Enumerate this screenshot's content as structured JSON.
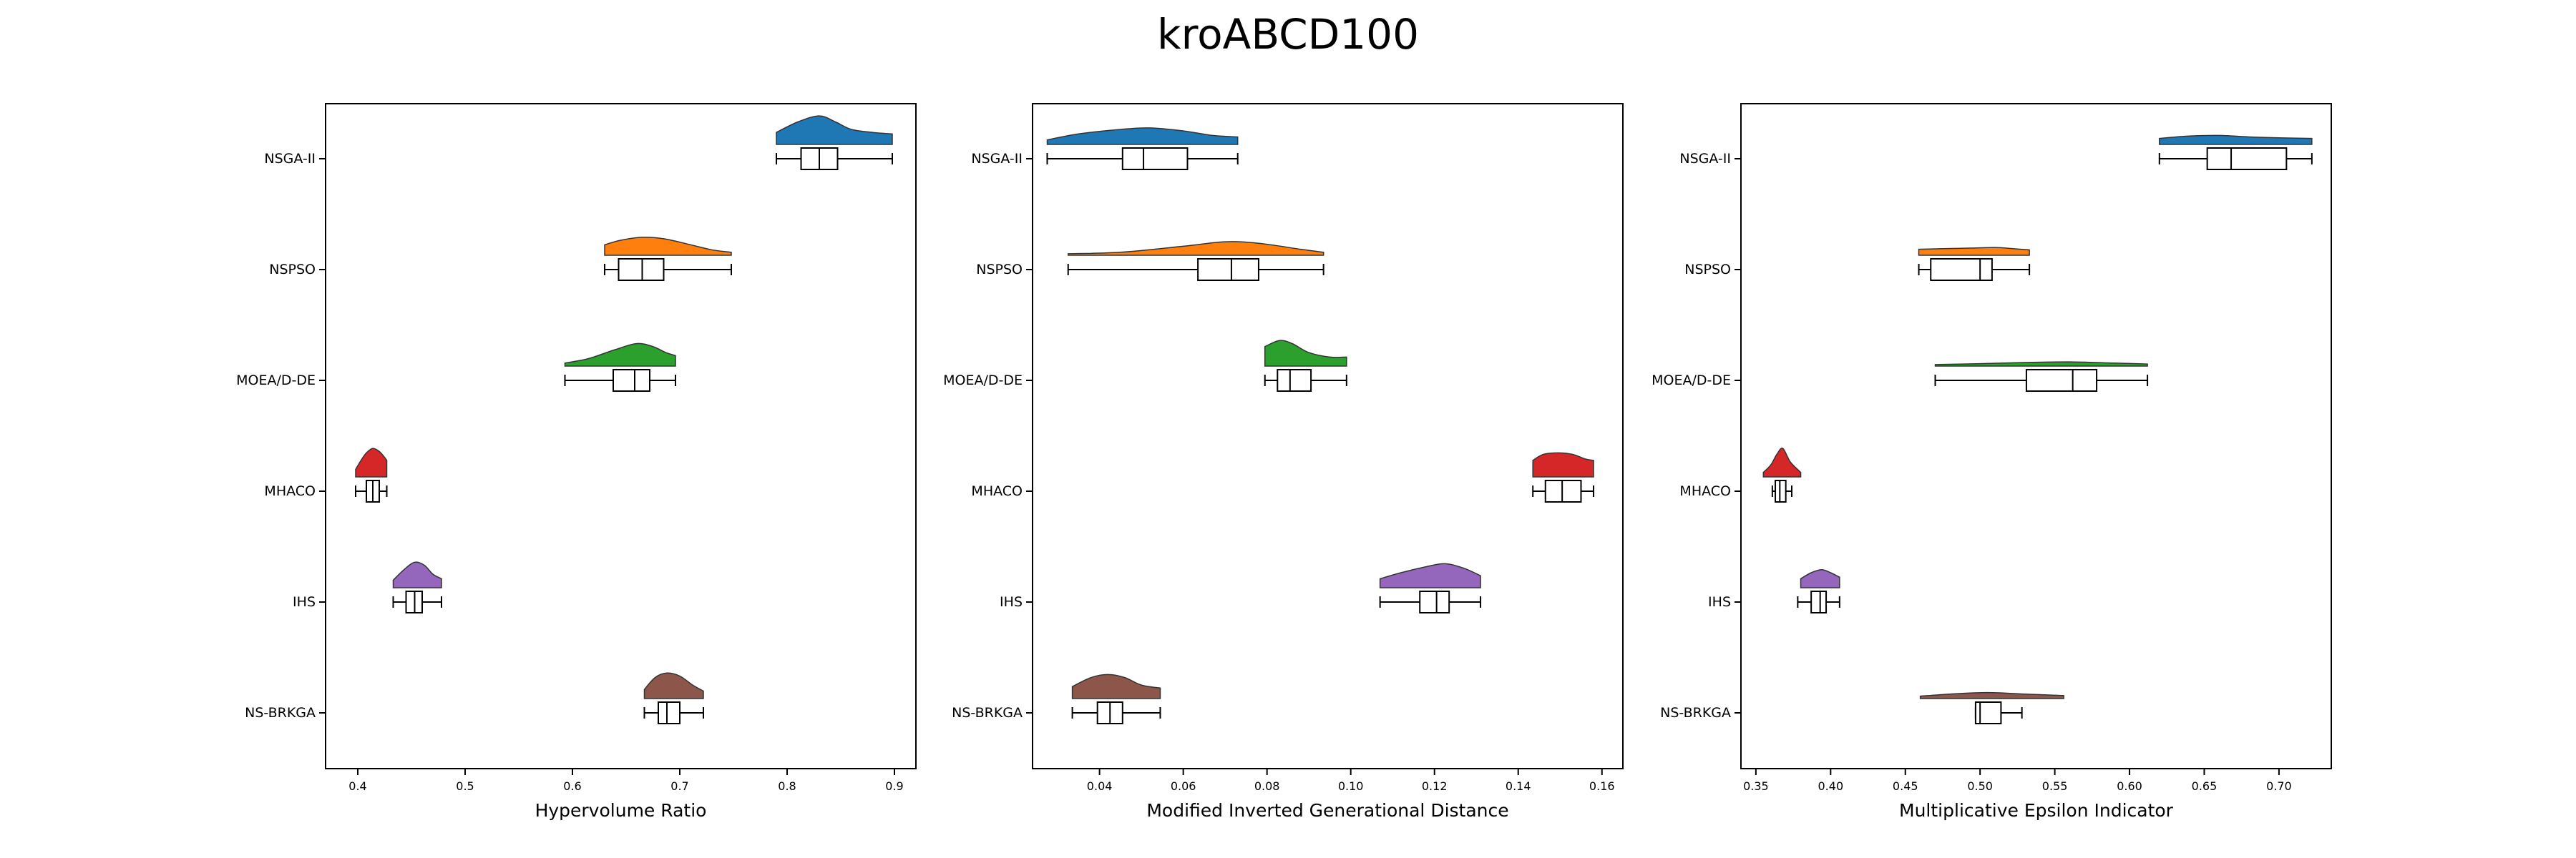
{
  "figure": {
    "title": "kroABCD100"
  },
  "algorithms": [
    "NSGA-II",
    "NSPSO",
    "MOEA/D-DE",
    "MHACO",
    "IHS",
    "NS-BRKGA"
  ],
  "colors": {
    "NSGA-II": "#1f77b4",
    "NSPSO": "#ff7f0e",
    "MOEA/D-DE": "#2ca02c",
    "MHACO": "#d62728",
    "IHS": "#9467bd",
    "NS-BRKGA": "#8c564b"
  },
  "chart_data": [
    {
      "type": "raincloud",
      "xlabel": "Hypervolume Ratio",
      "xlim": [
        0.37,
        0.92
      ],
      "xticks": [
        0.4,
        0.5,
        0.6,
        0.7,
        0.8,
        0.9
      ],
      "xtick_labels": [
        "0.4",
        "0.5",
        "0.6",
        "0.7",
        "0.8",
        "0.9"
      ],
      "series": [
        {
          "name": "NSGA-II",
          "min": 0.79,
          "q1": 0.813,
          "median": 0.83,
          "q3": 0.847,
          "max": 0.898,
          "density": [
            [
              0.79,
              0.4
            ],
            [
              0.81,
              0.75
            ],
            [
              0.83,
              0.95
            ],
            [
              0.845,
              0.75
            ],
            [
              0.86,
              0.5
            ],
            [
              0.88,
              0.4
            ],
            [
              0.898,
              0.35
            ]
          ]
        },
        {
          "name": "NSPSO",
          "min": 0.63,
          "q1": 0.643,
          "median": 0.665,
          "q3": 0.685,
          "max": 0.748,
          "density": [
            [
              0.63,
              0.35
            ],
            [
              0.645,
              0.5
            ],
            [
              0.665,
              0.6
            ],
            [
              0.685,
              0.55
            ],
            [
              0.71,
              0.35
            ],
            [
              0.73,
              0.18
            ],
            [
              0.748,
              0.1
            ]
          ]
        },
        {
          "name": "MOEA/D-DE",
          "min": 0.593,
          "q1": 0.638,
          "median": 0.658,
          "q3": 0.672,
          "max": 0.696,
          "density": [
            [
              0.593,
              0.1
            ],
            [
              0.615,
              0.25
            ],
            [
              0.64,
              0.55
            ],
            [
              0.66,
              0.75
            ],
            [
              0.675,
              0.65
            ],
            [
              0.687,
              0.45
            ],
            [
              0.696,
              0.35
            ]
          ]
        },
        {
          "name": "MHACO",
          "min": 0.398,
          "q1": 0.408,
          "median": 0.414,
          "q3": 0.42,
          "max": 0.427,
          "density": [
            [
              0.398,
              0.25
            ],
            [
              0.403,
              0.55
            ],
            [
              0.408,
              0.8
            ],
            [
              0.414,
              0.95
            ],
            [
              0.42,
              0.85
            ],
            [
              0.425,
              0.65
            ],
            [
              0.427,
              0.55
            ]
          ]
        },
        {
          "name": "IHS",
          "min": 0.433,
          "q1": 0.445,
          "median": 0.453,
          "q3": 0.46,
          "max": 0.478,
          "density": [
            [
              0.433,
              0.25
            ],
            [
              0.443,
              0.6
            ],
            [
              0.453,
              0.85
            ],
            [
              0.462,
              0.75
            ],
            [
              0.47,
              0.45
            ],
            [
              0.478,
              0.3
            ]
          ]
        },
        {
          "name": "NS-BRKGA",
          "min": 0.667,
          "q1": 0.68,
          "median": 0.688,
          "q3": 0.7,
          "max": 0.722,
          "density": [
            [
              0.667,
              0.3
            ],
            [
              0.677,
              0.7
            ],
            [
              0.688,
              0.85
            ],
            [
              0.7,
              0.75
            ],
            [
              0.712,
              0.45
            ],
            [
              0.722,
              0.25
            ]
          ]
        }
      ]
    },
    {
      "type": "raincloud",
      "xlabel": "Modified Inverted Generational Distance",
      "xlim": [
        0.024,
        0.165
      ],
      "xticks": [
        0.04,
        0.06,
        0.08,
        0.1,
        0.12,
        0.14,
        0.16
      ],
      "xtick_labels": [
        "0.04",
        "0.06",
        "0.08",
        "0.10",
        "0.12",
        "0.14",
        "0.16"
      ],
      "series": [
        {
          "name": "NSGA-II",
          "min": 0.0275,
          "q1": 0.0455,
          "median": 0.0505,
          "q3": 0.061,
          "max": 0.073,
          "density": [
            [
              0.0275,
              0.15
            ],
            [
              0.035,
              0.35
            ],
            [
              0.045,
              0.5
            ],
            [
              0.052,
              0.55
            ],
            [
              0.06,
              0.45
            ],
            [
              0.067,
              0.3
            ],
            [
              0.073,
              0.25
            ]
          ]
        },
        {
          "name": "NSPSO",
          "min": 0.0325,
          "q1": 0.0635,
          "median": 0.0715,
          "q3": 0.078,
          "max": 0.0935,
          "density": [
            [
              0.0325,
              0.05
            ],
            [
              0.045,
              0.1
            ],
            [
              0.06,
              0.3
            ],
            [
              0.07,
              0.45
            ],
            [
              0.078,
              0.4
            ],
            [
              0.088,
              0.2
            ],
            [
              0.0935,
              0.1
            ]
          ]
        },
        {
          "name": "MOEA/D-DE",
          "min": 0.0795,
          "q1": 0.0825,
          "median": 0.0855,
          "q3": 0.0905,
          "max": 0.099,
          "density": [
            [
              0.0795,
              0.65
            ],
            [
              0.083,
              0.85
            ],
            [
              0.086,
              0.75
            ],
            [
              0.09,
              0.45
            ],
            [
              0.095,
              0.3
            ],
            [
              0.099,
              0.3
            ]
          ]
        },
        {
          "name": "MHACO",
          "min": 0.1435,
          "q1": 0.1465,
          "median": 0.1505,
          "q3": 0.155,
          "max": 0.158,
          "density": [
            [
              0.1435,
              0.55
            ],
            [
              0.146,
              0.75
            ],
            [
              0.1495,
              0.8
            ],
            [
              0.153,
              0.75
            ],
            [
              0.156,
              0.6
            ],
            [
              0.158,
              0.55
            ]
          ]
        },
        {
          "name": "IHS",
          "min": 0.107,
          "q1": 0.1165,
          "median": 0.1205,
          "q3": 0.1235,
          "max": 0.131,
          "density": [
            [
              0.107,
              0.3
            ],
            [
              0.112,
              0.5
            ],
            [
              0.118,
              0.7
            ],
            [
              0.1225,
              0.8
            ],
            [
              0.127,
              0.65
            ],
            [
              0.131,
              0.4
            ]
          ]
        },
        {
          "name": "NS-BRKGA",
          "min": 0.0335,
          "q1": 0.0395,
          "median": 0.0425,
          "q3": 0.0455,
          "max": 0.0545,
          "density": [
            [
              0.0335,
              0.4
            ],
            [
              0.038,
              0.7
            ],
            [
              0.042,
              0.8
            ],
            [
              0.046,
              0.7
            ],
            [
              0.05,
              0.45
            ],
            [
              0.0545,
              0.35
            ]
          ]
        }
      ]
    },
    {
      "type": "raincloud",
      "xlabel": "Multiplicative Epsilon Indicator",
      "xlim": [
        0.34,
        0.735
      ],
      "xticks": [
        0.35,
        0.4,
        0.45,
        0.5,
        0.55,
        0.6,
        0.65,
        0.7
      ],
      "xtick_labels": [
        "0.35",
        "0.40",
        "0.45",
        "0.50",
        "0.55",
        "0.60",
        "0.65",
        "0.70"
      ],
      "series": [
        {
          "name": "NSGA-II",
          "min": 0.62,
          "q1": 0.652,
          "median": 0.668,
          "q3": 0.705,
          "max": 0.722,
          "density": [
            [
              0.62,
              0.2
            ],
            [
              0.64,
              0.28
            ],
            [
              0.66,
              0.3
            ],
            [
              0.68,
              0.25
            ],
            [
              0.7,
              0.22
            ],
            [
              0.722,
              0.2
            ]
          ]
        },
        {
          "name": "NSPSO",
          "min": 0.459,
          "q1": 0.467,
          "median": 0.5,
          "q3": 0.508,
          "max": 0.533,
          "density": [
            [
              0.459,
              0.2
            ],
            [
              0.475,
              0.22
            ],
            [
              0.495,
              0.24
            ],
            [
              0.51,
              0.26
            ],
            [
              0.522,
              0.22
            ],
            [
              0.533,
              0.18
            ]
          ]
        },
        {
          "name": "MOEA/D-DE",
          "min": 0.47,
          "q1": 0.531,
          "median": 0.562,
          "q3": 0.578,
          "max": 0.612,
          "density": [
            [
              0.47,
              0.05
            ],
            [
              0.5,
              0.08
            ],
            [
              0.53,
              0.12
            ],
            [
              0.56,
              0.14
            ],
            [
              0.59,
              0.1
            ],
            [
              0.612,
              0.07
            ]
          ]
        },
        {
          "name": "MHACO",
          "min": 0.361,
          "q1": 0.363,
          "median": 0.366,
          "q3": 0.37,
          "max": 0.374,
          "density": [
            [
              0.355,
              0.15
            ],
            [
              0.36,
              0.4
            ],
            [
              0.364,
              0.75
            ],
            [
              0.368,
              0.95
            ],
            [
              0.373,
              0.5
            ],
            [
              0.38,
              0.15
            ]
          ]
        },
        {
          "name": "IHS",
          "min": 0.378,
          "q1": 0.387,
          "median": 0.393,
          "q3": 0.397,
          "max": 0.406,
          "density": [
            [
              0.38,
              0.3
            ],
            [
              0.387,
              0.5
            ],
            [
              0.394,
              0.6
            ],
            [
              0.4,
              0.5
            ],
            [
              0.406,
              0.35
            ]
          ]
        },
        {
          "name": "NS-BRKGA",
          "min": 0.497,
          "q1": 0.497,
          "median": 0.5,
          "q3": 0.514,
          "max": 0.528,
          "density": [
            [
              0.46,
              0.08
            ],
            [
              0.48,
              0.15
            ],
            [
              0.505,
              0.2
            ],
            [
              0.53,
              0.15
            ],
            [
              0.556,
              0.1
            ]
          ]
        }
      ]
    }
  ]
}
